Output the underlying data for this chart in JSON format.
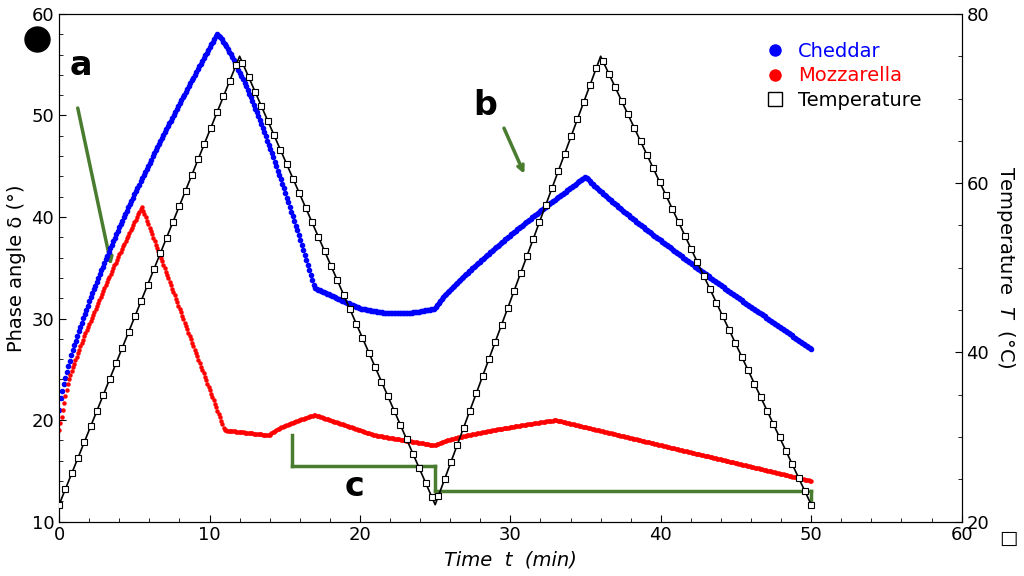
{
  "title": "",
  "xlabel": "Time  t  (min)",
  "ylabel_left": "Phase angle δ (°)",
  "ylabel_right": "Temperature  T  (°C)  □",
  "xlim": [
    0,
    60
  ],
  "ylim_left": [
    10,
    60
  ],
  "ylim_right": [
    20,
    80
  ],
  "xticks": [
    0,
    10,
    20,
    30,
    40,
    50,
    60
  ],
  "yticks_left": [
    10,
    20,
    30,
    40,
    50,
    60
  ],
  "yticks_right": [
    20,
    40,
    60,
    80
  ],
  "cheddar_color": "#0000ff",
  "mozz_color": "#ff0000",
  "temp_color": "#555555",
  "arrow_color": "#4a7c2f",
  "background_color": "#ffffff",
  "legend_fontsize": 14,
  "axis_label_fontsize": 14,
  "tick_fontsize": 13,
  "annot_fontsize": 24
}
